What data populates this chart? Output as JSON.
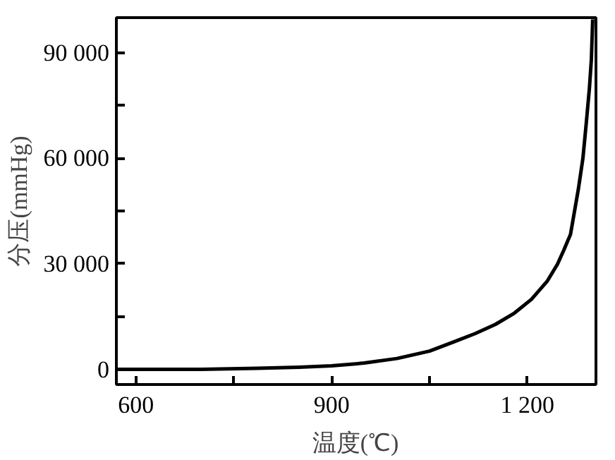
{
  "chart_data": {
    "type": "line",
    "xlabel": "温度(℃)",
    "ylabel": "分压(mmHg)",
    "x": [
      570,
      700,
      786,
      850,
      900,
      950,
      1000,
      1050,
      1087,
      1120,
      1151,
      1180,
      1206,
      1230,
      1246,
      1256,
      1266,
      1278,
      1285,
      1290,
      1295,
      1298,
      1300
    ],
    "series": [
      {
        "color": "#000000",
        "values": [
          0,
          0,
          300,
          600,
          1000,
          1800,
          3100,
          5200,
          7800,
          10200,
          12800,
          16000,
          19900,
          25000,
          29900,
          34000,
          38400,
          51200,
          60000,
          69700,
          80000,
          88200,
          99500
        ]
      }
    ],
    "xlim": [
      570,
      1305
    ],
    "ylim": [
      -4300,
      100000
    ],
    "xticks": [
      600,
      {
        "value": 750,
        "label": null
      },
      900,
      {
        "value": 1050,
        "label": null
      },
      {
        "value": 1200,
        "label": "1 200"
      }
    ],
    "yticks": [
      0,
      {
        "value": 15000,
        "label": null
      },
      {
        "value": 30000,
        "label": "30 000"
      },
      {
        "value": 45000,
        "label": null
      },
      {
        "value": 60000,
        "label": "60 000"
      },
      {
        "value": 75000,
        "label": null
      },
      {
        "value": 90000,
        "label": "90 000"
      }
    ],
    "grid": false,
    "marker": "none",
    "line_style": "solid"
  }
}
